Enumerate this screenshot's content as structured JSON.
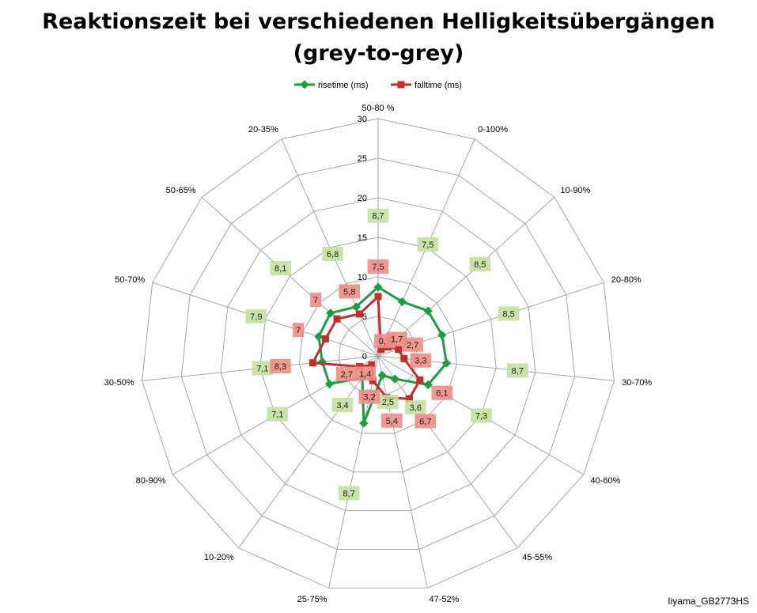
{
  "title_line1": "Reaktionszeit bei verschiedenen Helligkeitsübergängen",
  "title_line2": "(grey-to-grey)",
  "watermark": "Iiyama_GB2773HS",
  "colors": {
    "rise": "#1a9e45",
    "fall": "#c0302a",
    "rise_label_bg": "#c3e0a0",
    "fall_label_bg": "#ef8c86",
    "grid": "#a6a6a6"
  },
  "chart_data": {
    "type": "radar",
    "categories": [
      "50-80 %",
      "0-100%",
      "10-90%",
      "20-80%",
      "30-70%",
      "40-60%",
      "45-55%",
      "47-52%",
      "25-75%",
      "10-20%",
      "80-90%",
      "30-50%",
      "50-70%",
      "50-65%",
      "20-35%"
    ],
    "rlim": [
      0,
      30
    ],
    "ticks": [
      "0",
      "5",
      "10",
      "15",
      "20",
      "25",
      "30"
    ],
    "legend_position": "top",
    "series": [
      {
        "name": "risetime (ms)",
        "values": [
          8.7,
          7.5,
          8.5,
          8.5,
          8.7,
          7.3,
          3.6,
          2.5,
          8.7,
          3.4,
          7.1,
          7.1,
          7.9,
          8.1,
          6.8
        ],
        "labels": [
          "8,7",
          "7,5",
          "8,5",
          "8,5",
          "8,7",
          "7,3",
          "3,6",
          "2,5",
          "8,7",
          "3,4",
          "7,1",
          "7,1",
          "7,9",
          "8,1",
          "6,8"
        ]
      },
      {
        "name": "falltime (ms)",
        "values": [
          7.5,
          0.9,
          1.7,
          2.7,
          3.3,
          6.1,
          6.7,
          5.4,
          3.2,
          1.4,
          2.7,
          8.3,
          7.0,
          7.0,
          5.8
        ],
        "labels": [
          "7,5",
          "0,9",
          "1,7",
          "2,7",
          "3,3",
          "6,1",
          "6,7",
          "5,4",
          "3,2",
          "1,4",
          "2,7",
          "8,3",
          "7",
          "7",
          "5,8"
        ]
      }
    ]
  }
}
